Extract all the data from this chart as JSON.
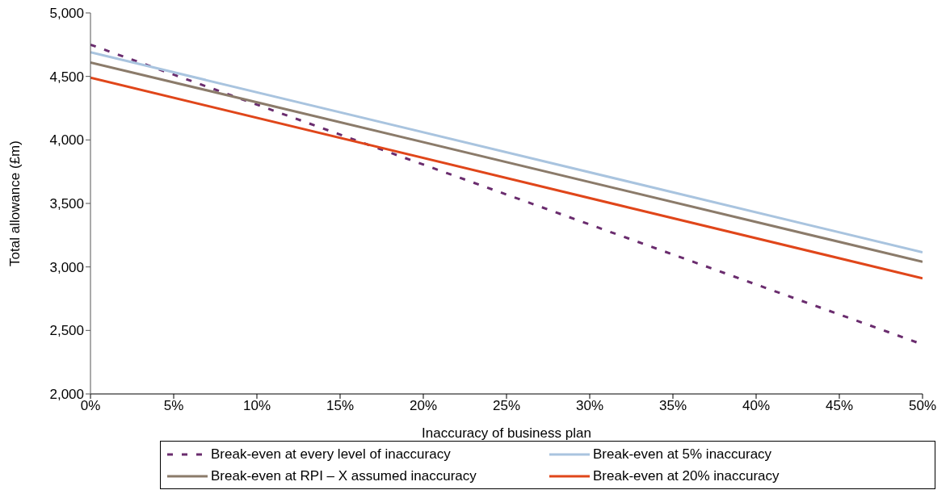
{
  "chart_data": {
    "type": "line",
    "xlabel": "Inaccuracy of business plan",
    "ylabel": "Total allowance (£m)",
    "x": [
      0,
      50
    ],
    "xlim": [
      0,
      50
    ],
    "xticks": [
      {
        "value": 0,
        "label": "0%"
      },
      {
        "value": 5,
        "label": "5%"
      },
      {
        "value": 10,
        "label": "10%"
      },
      {
        "value": 15,
        "label": "15%"
      },
      {
        "value": 20,
        "label": "20%"
      },
      {
        "value": 25,
        "label": "25%"
      },
      {
        "value": 30,
        "label": "30%"
      },
      {
        "value": 35,
        "label": "35%"
      },
      {
        "value": 40,
        "label": "40%"
      },
      {
        "value": 45,
        "label": "45%"
      },
      {
        "value": 50,
        "label": "50%"
      }
    ],
    "ylim": [
      2000,
      5000
    ],
    "yticks": [
      {
        "value": 2000,
        "label": "2,000"
      },
      {
        "value": 2500,
        "label": "2,500"
      },
      {
        "value": 3000,
        "label": "3,000"
      },
      {
        "value": 3500,
        "label": "3,500"
      },
      {
        "value": 4000,
        "label": "4,000"
      },
      {
        "value": 4500,
        "label": "4,500"
      },
      {
        "value": 5000,
        "label": "5,000"
      }
    ],
    "grid": false,
    "legend": "bottom",
    "marker": "none",
    "series": [
      {
        "name": "Break-even at every level of inaccuracy",
        "color": "#6a2c6e",
        "line_style": "dashed",
        "values": [
          4750,
          2390
        ]
      },
      {
        "name": "Break-even at 5% inaccuracy",
        "color": "#a9c4df",
        "values": [
          4690,
          3115
        ]
      },
      {
        "name": "Break-even at RPI – X assumed inaccuracy",
        "color": "#8b7b6a",
        "values": [
          4610,
          3040
        ]
      },
      {
        "name": "Break-even at 20% inaccuracy",
        "color": "#e0461a",
        "values": [
          4490,
          2910
        ]
      }
    ]
  }
}
